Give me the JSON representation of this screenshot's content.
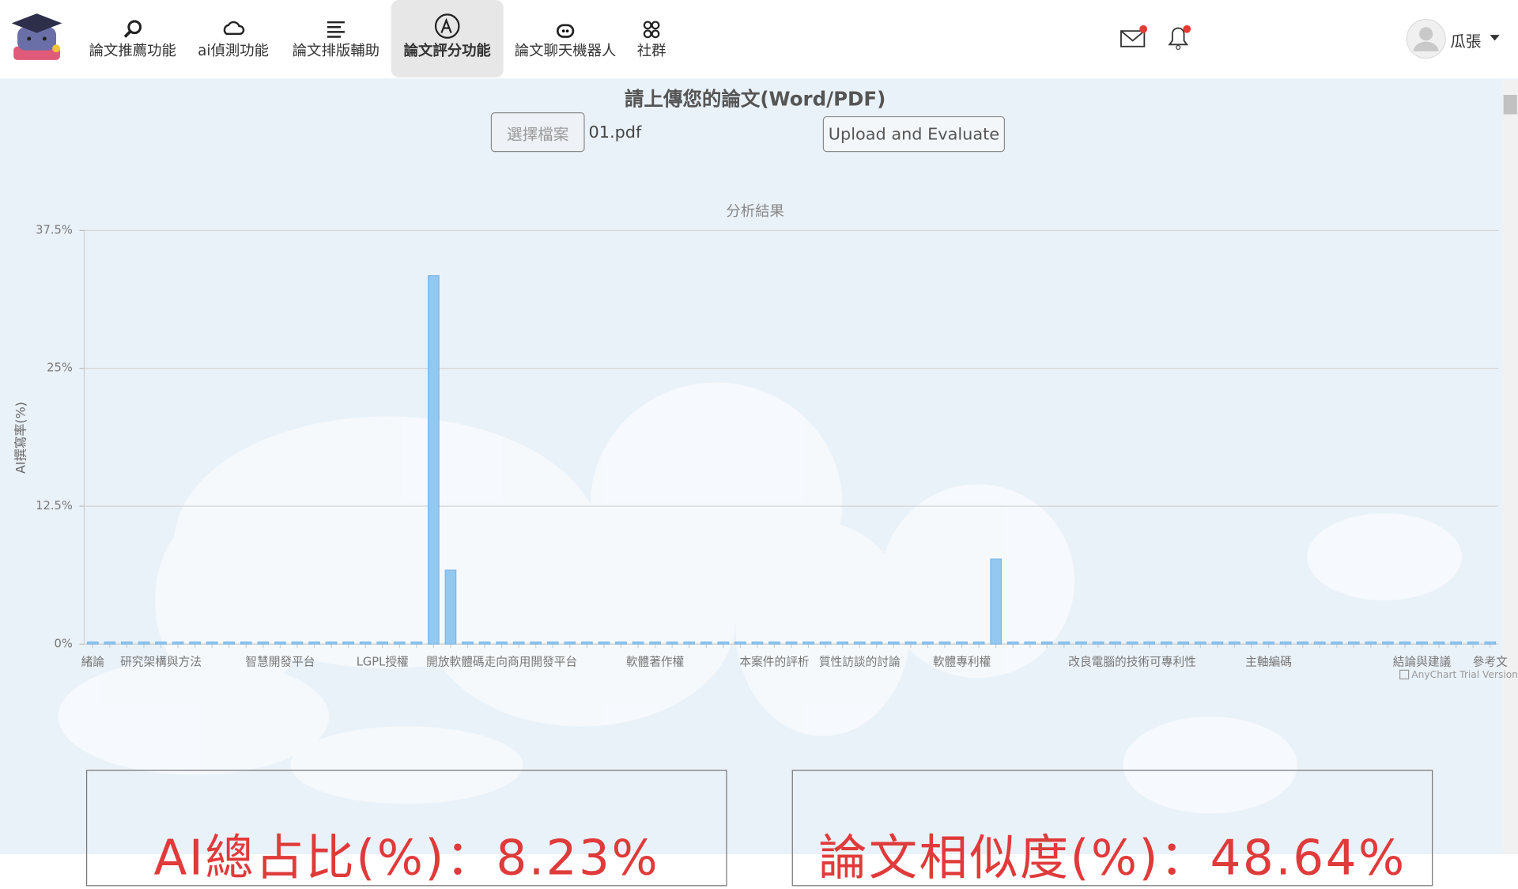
{
  "nav": {
    "items": [
      "論文推薦功能",
      "ai偵測功能",
      "論文排版輔助",
      "論文評分功能",
      "論文聊天機器人",
      "社群"
    ],
    "user": "瓜張"
  },
  "upload": {
    "heading": "請上傳您的論文(Word/PDF)",
    "choose": "選擇檔案",
    "file": "01.pdf",
    "submit": "Upload and Evaluate"
  },
  "results": {
    "ai_total": "AI總占比(%)：8.23%",
    "similarity": "論文相似度(%)：48.64%"
  },
  "chart_data": {
    "type": "bar",
    "title": "分析結果",
    "y_label": "AI撰寫率(%)",
    "credit": "AnyChart Trial Version",
    "categories": [
      "緒論",
      null,
      null,
      null,
      "研究架構與方法",
      null,
      null,
      null,
      null,
      null,
      null,
      "智慧開發平台",
      null,
      null,
      null,
      null,
      null,
      "LGPL授權",
      null,
      null,
      null,
      null,
      null,
      null,
      "開放軟體碼走向商用開發平台",
      null,
      null,
      null,
      null,
      null,
      null,
      null,
      null,
      "軟體著作權",
      null,
      null,
      null,
      null,
      null,
      null,
      "本案件的評析",
      null,
      null,
      null,
      null,
      "質性訪談的討論",
      null,
      null,
      null,
      null,
      null,
      "軟體專利權",
      null,
      null,
      null,
      null,
      null,
      null,
      null,
      null,
      null,
      "改良電腦的技術可專利性",
      null,
      null,
      null,
      null,
      null,
      null,
      null,
      "主軸編碼",
      null,
      null,
      null,
      null,
      null,
      null,
      null,
      null,
      "結論與建議",
      null,
      null,
      null,
      "參考文"
    ],
    "values": [
      0,
      0,
      0,
      0,
      0,
      0,
      0,
      0,
      0,
      0,
      0,
      0,
      0,
      0,
      0,
      0,
      0,
      0,
      0,
      0,
      33.4,
      6.7,
      0,
      0,
      0,
      0,
      0,
      0,
      0,
      0,
      0,
      0,
      0,
      0,
      0,
      0,
      0,
      0,
      0,
      0,
      0,
      0,
      0,
      0,
      0,
      0,
      0,
      0,
      0,
      0,
      0,
      0,
      0,
      7.7,
      0,
      0,
      0,
      0,
      0,
      0,
      0,
      0,
      0,
      0,
      0,
      0,
      0,
      0,
      0,
      0,
      0,
      0,
      0,
      0,
      0,
      0,
      0,
      0,
      0,
      0,
      0,
      0,
      0
    ],
    "color": "#93c8f0",
    "ylim": [
      0,
      37.5
    ],
    "yticks": [
      {
        "value": 0,
        "label": "0%"
      },
      {
        "value": 12.5,
        "label": "12.5%"
      },
      {
        "value": 25,
        "label": "25%"
      },
      {
        "value": 37.5,
        "label": "37.5%"
      }
    ],
    "grid": true
  }
}
